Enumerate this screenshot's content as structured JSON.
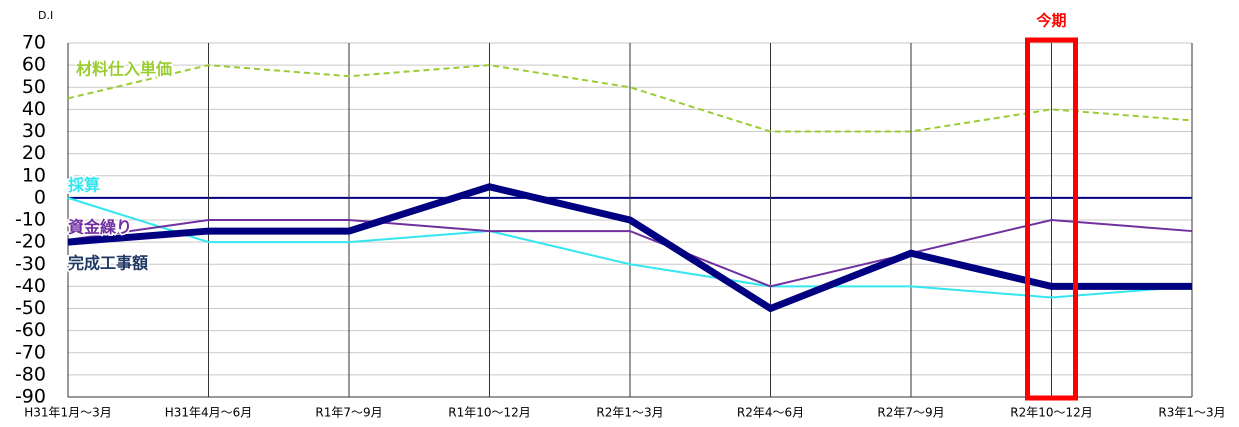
{
  "chart_data": {
    "type": "line",
    "ylabel": "D.I",
    "categories": [
      "H31年1月～3月",
      "H31年4月～6月",
      "R1年7～9月",
      "R1年10～12月",
      "R2年1～3月",
      "R2年4～6月",
      "R2年7～9月",
      "R2年10～12月",
      "R3年1～3月"
    ],
    "series": [
      {
        "name": "材料仕入単価",
        "color": "#9acd32",
        "dashed": true,
        "width": 2,
        "values": [
          45,
          60,
          55,
          60,
          50,
          30,
          30,
          40,
          35
        ]
      },
      {
        "name": "採算",
        "color": "#33e6f0",
        "dashed": false,
        "width": 2,
        "values": [
          0,
          -20,
          -20,
          -15,
          -30,
          -40,
          -40,
          -45,
          -40
        ]
      },
      {
        "name": "資金繰り",
        "color": "#7030a0",
        "dashed": false,
        "width": 2,
        "values": [
          -19,
          -10,
          -10,
          -15,
          -15,
          -40,
          -25,
          -10,
          -15
        ]
      },
      {
        "name": "完成工事額",
        "color": "#000080",
        "dashed": false,
        "width": 7,
        "values": [
          -20,
          -15,
          -15,
          5,
          -10,
          -50,
          -25,
          -40,
          -40
        ]
      }
    ],
    "highlight": {
      "label": "今期",
      "category_index": 7,
      "color": "#ff0000"
    },
    "ylim": [
      -90,
      70
    ],
    "yticks": [
      70,
      60,
      50,
      40,
      30,
      20,
      10,
      0,
      -10,
      -20,
      -30,
      -40,
      -50,
      -60,
      -70,
      -80,
      -90
    ],
    "grid": true
  }
}
